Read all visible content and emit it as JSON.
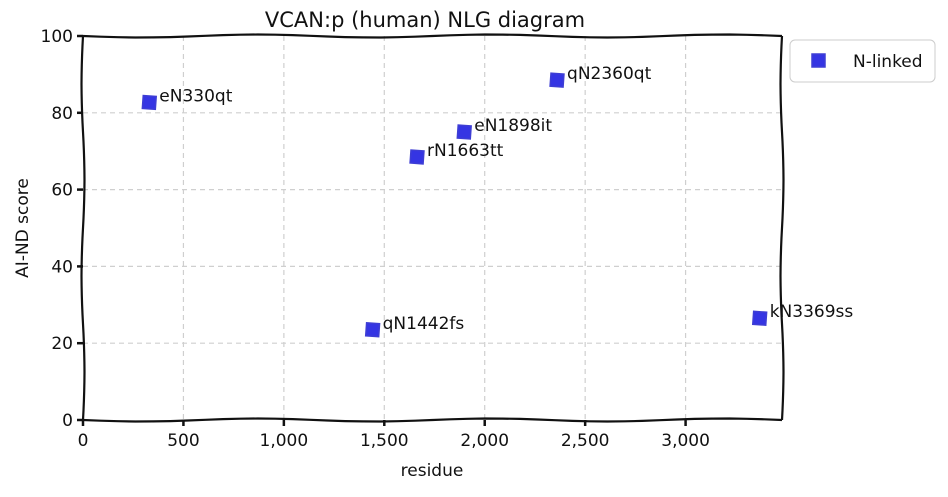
{
  "chart_data": {
    "type": "scatter",
    "title": "VCAN:p (human) NLG diagram",
    "xlabel": "residue",
    "ylabel": "AI-ND score",
    "xlim": [
      0,
      3480
    ],
    "ylim": [
      0,
      100
    ],
    "xticks": [
      0,
      500,
      1000,
      1500,
      2000,
      2500,
      3000
    ],
    "xtick_labels": [
      "0",
      "500",
      "1,000",
      "1,500",
      "2,000",
      "2,500",
      "3,000"
    ],
    "yticks": [
      0,
      20,
      40,
      60,
      80,
      100
    ],
    "ytick_labels": [
      "0",
      "20",
      "40",
      "60",
      "80",
      "100"
    ],
    "grid": true,
    "legend_position": "outside top-right",
    "series": [
      {
        "name": "N-linked",
        "color": "#2020e0",
        "marker": "square",
        "points": [
          {
            "x": 330,
            "y": 82.7,
            "label": "eN330qt"
          },
          {
            "x": 1442,
            "y": 23.5,
            "label": "qN1442fs"
          },
          {
            "x": 1663,
            "y": 68.5,
            "label": "rN1663tt"
          },
          {
            "x": 1898,
            "y": 75.0,
            "label": "eN1898it"
          },
          {
            "x": 2360,
            "y": 88.5,
            "label": "qN2360qt"
          },
          {
            "x": 3369,
            "y": 26.5,
            "label": "kN3369ss"
          }
        ]
      }
    ]
  }
}
